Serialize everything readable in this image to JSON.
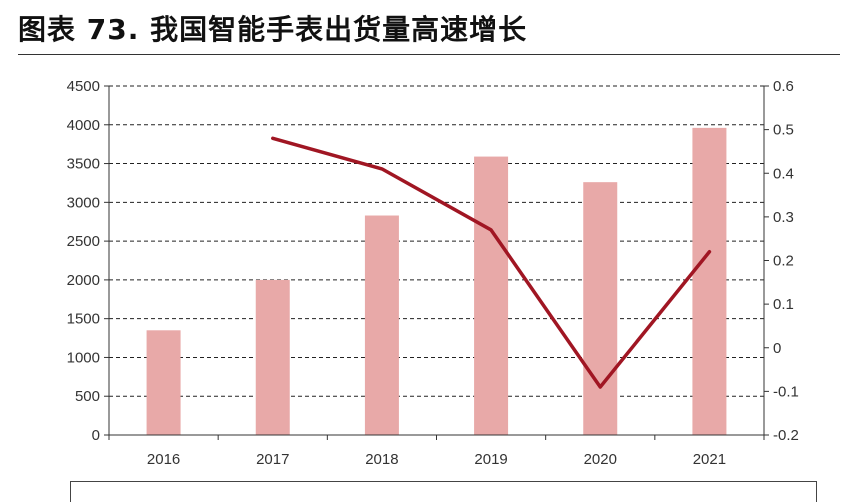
{
  "title": "图表 73. 我国智能手表出货量高速增长",
  "colors": {
    "bar": "#e8a9a8",
    "line": "#a01623",
    "grid": "#222222",
    "axis": "#333333"
  },
  "chart_data": {
    "type": "bar",
    "categories": [
      "2016",
      "2017",
      "2018",
      "2019",
      "2020",
      "2021"
    ],
    "series": [
      {
        "type": "bar",
        "axis": "left",
        "values": [
          1350,
          2000,
          2830,
          3590,
          3260,
          3960
        ]
      },
      {
        "type": "line",
        "axis": "right",
        "values": [
          null,
          0.48,
          0.41,
          0.27,
          -0.09,
          0.22
        ]
      }
    ],
    "y_left": {
      "ylim": [
        0,
        4500
      ],
      "ticks": [
        0,
        500,
        1000,
        1500,
        2000,
        2500,
        3000,
        3500,
        4000,
        4500
      ]
    },
    "y_right": {
      "ylim": [
        -0.2,
        0.6
      ],
      "ticks": [
        -0.2,
        -0.1,
        0,
        0.1,
        0.2,
        0.3,
        0.4,
        0.5,
        0.6
      ],
      "tick_labels": [
        "-0.2",
        "-0.1",
        "0",
        "0.1",
        "0.2",
        "0.3",
        "0.4",
        "0.5",
        "0.6"
      ]
    },
    "grid": "horizontal-dashed",
    "legend": "bottom"
  }
}
